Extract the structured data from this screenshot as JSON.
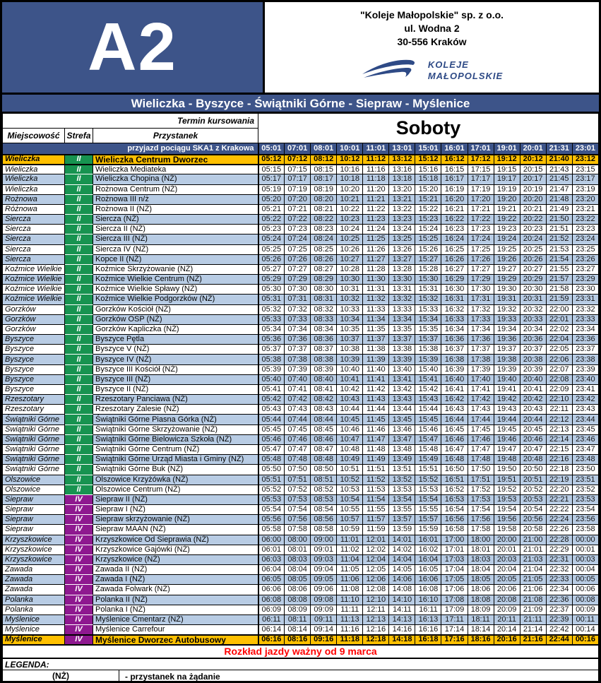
{
  "header": {
    "route_code": "A2",
    "company_lines": [
      "\"Koleje Małopolskie\" sp. z o.o.",
      "ul. Wodna 2",
      "30-556 Kraków"
    ],
    "logo_line1": "KOLEJE",
    "logo_line2": "MAŁOPOLSKIE"
  },
  "title": "Wieliczka - Byszyce - Świątniki Górne - Siepraw - Myślenice",
  "table": {
    "termin_label": "Termin kursowania",
    "day_type": "Soboty",
    "col_headers": {
      "miejscowosc": "Miejscowość",
      "strefa": "Strefa",
      "przystanek": "Przystanek"
    },
    "ska_label": "przyjazd pociągu SKA1 z Krakowa",
    "ska_times": [
      "05:01",
      "07:01",
      "08:01",
      "10:01",
      "11:01",
      "13:01",
      "15:01",
      "16:01",
      "17:01",
      "19:01",
      "20:01",
      "21:31",
      "23:01"
    ],
    "rows": [
      {
        "m": "Wieliczka",
        "z": "II",
        "s": "Wieliczka Centrum Dworzec",
        "terminal": true,
        "t": [
          "05:12",
          "07:12",
          "08:12",
          "10:12",
          "11:12",
          "13:12",
          "15:12",
          "16:12",
          "17:12",
          "19:12",
          "20:12",
          "21:40",
          "23:12"
        ]
      },
      {
        "m": "Wieliczka",
        "z": "II",
        "s": "Wieliczka Mediateka",
        "t": [
          "05:15",
          "07:15",
          "08:15",
          "10:16",
          "11:16",
          "13:16",
          "15:16",
          "16:15",
          "17:15",
          "19:15",
          "20:15",
          "21:43",
          "23:15"
        ]
      },
      {
        "m": "Wieliczka",
        "z": "II",
        "s": "Wieliczka Chopina (NŻ)",
        "t": [
          "05:17",
          "07:17",
          "08:17",
          "10:18",
          "11:18",
          "13:18",
          "15:18",
          "16:17",
          "17:17",
          "19:17",
          "20:17",
          "21:45",
          "23:17"
        ]
      },
      {
        "m": "Wieliczka",
        "z": "II",
        "s": "Rożnowa Centrum (NŻ)",
        "t": [
          "05:19",
          "07:19",
          "08:19",
          "10:20",
          "11:20",
          "13:20",
          "15:20",
          "16:19",
          "17:19",
          "19:19",
          "20:19",
          "21:47",
          "23:19"
        ]
      },
      {
        "m": "Rożnowa",
        "z": "II",
        "s": "Rożnowa III n/ż",
        "t": [
          "05:20",
          "07:20",
          "08:20",
          "10:21",
          "11:21",
          "13:21",
          "15:21",
          "16:20",
          "17:20",
          "19:20",
          "20:20",
          "21:48",
          "23:20"
        ]
      },
      {
        "m": "Różnowa",
        "z": "II",
        "s": "Rożnowa II (NŻ)",
        "t": [
          "05:21",
          "07:21",
          "08:21",
          "10:22",
          "11:22",
          "13:22",
          "15:22",
          "16:21",
          "17:21",
          "19:21",
          "20:21",
          "21:49",
          "23:21"
        ]
      },
      {
        "m": "Siercza",
        "z": "II",
        "s": "Siercza (NŻ)",
        "t": [
          "05:22",
          "07:22",
          "08:22",
          "10:23",
          "11:23",
          "13:23",
          "15:23",
          "16:22",
          "17:22",
          "19:22",
          "20:22",
          "21:50",
          "23:22"
        ]
      },
      {
        "m": "Siercza",
        "z": "II",
        "s": "Siercza II (NŻ)",
        "t": [
          "05:23",
          "07:23",
          "08:23",
          "10:24",
          "11:24",
          "13:24",
          "15:24",
          "16:23",
          "17:23",
          "19:23",
          "20:23",
          "21:51",
          "23:23"
        ]
      },
      {
        "m": "Siercza",
        "z": "II",
        "s": "Siercza III (NŻ)",
        "t": [
          "05:24",
          "07:24",
          "08:24",
          "10:25",
          "11:25",
          "13:25",
          "15:25",
          "16:24",
          "17:24",
          "19:24",
          "20:24",
          "21:52",
          "23:24"
        ]
      },
      {
        "m": "Siercza",
        "z": "II",
        "s": "Siercza IV (NŻ)",
        "t": [
          "05:25",
          "07:25",
          "08:25",
          "10:26",
          "11:26",
          "13:26",
          "15:26",
          "16:25",
          "17:25",
          "19:25",
          "20:25",
          "21:53",
          "23:25"
        ]
      },
      {
        "m": "Siercza",
        "z": "II",
        "s": "Kopce II (NŻ)",
        "t": [
          "05:26",
          "07:26",
          "08:26",
          "10:27",
          "11:27",
          "13:27",
          "15:27",
          "16:26",
          "17:26",
          "19:26",
          "20:26",
          "21:54",
          "23:26"
        ]
      },
      {
        "m": "Koźmice Wielkie",
        "z": "II",
        "s": "Koźmice Skrzyżowanie (NŻ)",
        "t": [
          "05:27",
          "07:27",
          "08:27",
          "10:28",
          "11:28",
          "13:28",
          "15:28",
          "16:27",
          "17:27",
          "19:27",
          "20:27",
          "21:55",
          "23:27"
        ]
      },
      {
        "m": "Koźmice Wielkie",
        "z": "II",
        "s": "Koźmice Wielkie Centrum (NŻ)",
        "t": [
          "05:29",
          "07:29",
          "08:29",
          "10:30",
          "11:30",
          "13:30",
          "15:30",
          "16:29",
          "17:29",
          "19:29",
          "20:29",
          "21:57",
          "23:29"
        ]
      },
      {
        "m": "Koźmice Wielkie",
        "z": "II",
        "s": "Koźmice Wielkie Spławy (NŻ)",
        "t": [
          "05:30",
          "07:30",
          "08:30",
          "10:31",
          "11:31",
          "13:31",
          "15:31",
          "16:30",
          "17:30",
          "19:30",
          "20:30",
          "21:58",
          "23:30"
        ]
      },
      {
        "m": "Koźmice Wielkie",
        "z": "II",
        "s": "Koźmice Wielkie Podgorzków (NŻ)",
        "t": [
          "05:31",
          "07:31",
          "08:31",
          "10:32",
          "11:32",
          "13:32",
          "15:32",
          "16:31",
          "17:31",
          "19:31",
          "20:31",
          "21:59",
          "23:31"
        ]
      },
      {
        "m": "Gorzków",
        "z": "II",
        "s": "Gorzków Kościół (NŻ)",
        "t": [
          "05:32",
          "07:32",
          "08:32",
          "10:33",
          "11:33",
          "13:33",
          "15:33",
          "16:32",
          "17:32",
          "19:32",
          "20:32",
          "22:00",
          "23:32"
        ]
      },
      {
        "m": "Gorzków",
        "z": "II",
        "s": "Gorzków OSP (NŻ)",
        "t": [
          "05:33",
          "07:33",
          "08:33",
          "10:34",
          "11:34",
          "13:34",
          "15:34",
          "16:33",
          "17:33",
          "19:33",
          "20:33",
          "22:01",
          "23:33"
        ]
      },
      {
        "m": "Gorzków",
        "z": "II",
        "s": "Gorzków Kapliczka (NŻ)",
        "t": [
          "05:34",
          "07:34",
          "08:34",
          "10:35",
          "11:35",
          "13:35",
          "15:35",
          "16:34",
          "17:34",
          "19:34",
          "20:34",
          "22:02",
          "23:34"
        ]
      },
      {
        "m": "Byszyce",
        "z": "II",
        "s": "Byszyce Pętla",
        "t": [
          "05:36",
          "07:36",
          "08:36",
          "10:37",
          "11:37",
          "13:37",
          "15:37",
          "16:36",
          "17:36",
          "19:36",
          "20:36",
          "22:04",
          "23:36"
        ]
      },
      {
        "m": "Byszyce",
        "z": "II",
        "s": "Byszyce V (NŻ)",
        "t": [
          "05:37",
          "07:37",
          "08:37",
          "10:38",
          "11:38",
          "13:38",
          "15:38",
          "16:37",
          "17:37",
          "19:37",
          "20:37",
          "22:05",
          "23:37"
        ]
      },
      {
        "m": "Byszyce",
        "z": "II",
        "s": "Byszyce IV (NŻ)",
        "t": [
          "05:38",
          "07:38",
          "08:38",
          "10:39",
          "11:39",
          "13:39",
          "15:39",
          "16:38",
          "17:38",
          "19:38",
          "20:38",
          "22:06",
          "23:38"
        ]
      },
      {
        "m": "Byszyce",
        "z": "II",
        "s": "Byszyce III Kościół (NŻ)",
        "t": [
          "05:39",
          "07:39",
          "08:39",
          "10:40",
          "11:40",
          "13:40",
          "15:40",
          "16:39",
          "17:39",
          "19:39",
          "20:39",
          "22:07",
          "23:39"
        ]
      },
      {
        "m": "Byszyce",
        "z": "II",
        "s": "Byszyce III (NŻ)",
        "t": [
          "05:40",
          "07:40",
          "08:40",
          "10:41",
          "11:41",
          "13:41",
          "15:41",
          "16:40",
          "17:40",
          "19:40",
          "20:40",
          "22:08",
          "23:40"
        ]
      },
      {
        "m": "Byszyce",
        "z": "II",
        "s": "Byszyce II (NŻ)",
        "t": [
          "05:41",
          "07:41",
          "08:41",
          "10:42",
          "11:42",
          "13:42",
          "15:42",
          "16:41",
          "17:41",
          "19:41",
          "20:41",
          "22:09",
          "23:41"
        ]
      },
      {
        "m": "Rzeszotary",
        "z": "II",
        "s": "Rzeszotary Panciawa (NŻ)",
        "t": [
          "05:42",
          "07:42",
          "08:42",
          "10:43",
          "11:43",
          "13:43",
          "15:43",
          "16:42",
          "17:42",
          "19:42",
          "20:42",
          "22:10",
          "23:42"
        ]
      },
      {
        "m": "Rzeszotary",
        "z": "II",
        "s": "Rzeszotary Zalesie (NŻ)",
        "t": [
          "05:43",
          "07:43",
          "08:43",
          "10:44",
          "11:44",
          "13:44",
          "15:44",
          "16:43",
          "17:43",
          "19:43",
          "20:43",
          "22:11",
          "23:43"
        ]
      },
      {
        "m": "Świątniki Górne",
        "z": "II",
        "s": "Świątniki Górne Piasna Górka (NŻ)",
        "t": [
          "05:44",
          "07:44",
          "08:44",
          "10:45",
          "11:45",
          "13:45",
          "15:45",
          "16:44",
          "17:44",
          "19:44",
          "20:44",
          "22:12",
          "23:44"
        ]
      },
      {
        "m": "Świątniki Górne",
        "z": "II",
        "s": "Świątniki Górne Skrzyżowanie (NŻ)",
        "t": [
          "05:45",
          "07:45",
          "08:45",
          "10:46",
          "11:46",
          "13:46",
          "15:46",
          "16:45",
          "17:45",
          "19:45",
          "20:45",
          "22:13",
          "23:45"
        ]
      },
      {
        "m": "Świątniki Górne",
        "z": "II",
        "s": "Świątniki Górne Bielowicza Szkoła (NŻ)",
        "t": [
          "05:46",
          "07:46",
          "08:46",
          "10:47",
          "11:47",
          "13:47",
          "15:47",
          "16:46",
          "17:46",
          "19:46",
          "20:46",
          "22:14",
          "23:46"
        ]
      },
      {
        "m": "Świątniki Górne",
        "z": "II",
        "s": "Świątniki Górne Centrum (NŻ)",
        "t": [
          "05:47",
          "07:47",
          "08:47",
          "10:48",
          "11:48",
          "13:48",
          "15:48",
          "16:47",
          "17:47",
          "19:47",
          "20:47",
          "22:15",
          "23:47"
        ]
      },
      {
        "m": "Świątniki Górne",
        "z": "II",
        "s": "Świątniki Górne Urząd Miasta i Gminy (NŻ)",
        "t": [
          "05:48",
          "07:48",
          "08:48",
          "10:49",
          "11:49",
          "13:49",
          "15:49",
          "16:48",
          "17:48",
          "19:48",
          "20:48",
          "22:16",
          "23:48"
        ]
      },
      {
        "m": "Świątniki Górne",
        "z": "II",
        "s": "Świątniki Górne Buk (NŻ)",
        "t": [
          "05:50",
          "07:50",
          "08:50",
          "10:51",
          "11:51",
          "13:51",
          "15:51",
          "16:50",
          "17:50",
          "19:50",
          "20:50",
          "22:18",
          "23:50"
        ]
      },
      {
        "m": "Olszowice",
        "z": "II",
        "s": "Olszowice Krzyżówka (NŻ)",
        "t": [
          "05:51",
          "07:51",
          "08:51",
          "10:52",
          "11:52",
          "13:52",
          "15:52",
          "16:51",
          "17:51",
          "19:51",
          "20:51",
          "22:19",
          "23:51"
        ]
      },
      {
        "m": "Olszowice",
        "z": "II",
        "s": "Olszowice Centrum (NŻ)",
        "t": [
          "05:52",
          "07:52",
          "08:52",
          "10:53",
          "11:53",
          "13:53",
          "15:53",
          "16:52",
          "17:52",
          "19:52",
          "20:52",
          "22:20",
          "23:52"
        ]
      },
      {
        "m": "Siepraw",
        "z": "IV",
        "s": "Siepraw II (NŻ)",
        "t": [
          "05:53",
          "07:53",
          "08:53",
          "10:54",
          "11:54",
          "13:54",
          "15:54",
          "16:53",
          "17:53",
          "19:53",
          "20:53",
          "22:21",
          "23:53"
        ]
      },
      {
        "m": "Siepraw",
        "z": "IV",
        "s": "Siepraw I (NŻ)",
        "t": [
          "05:54",
          "07:54",
          "08:54",
          "10:55",
          "11:55",
          "13:55",
          "15:55",
          "16:54",
          "17:54",
          "19:54",
          "20:54",
          "22:22",
          "23:54"
        ]
      },
      {
        "m": "Siepraw",
        "z": "IV",
        "s": "Siepraw skrzyżowanie (NŻ)",
        "t": [
          "05:56",
          "07:56",
          "08:56",
          "10:57",
          "11:57",
          "13:57",
          "15:57",
          "16:56",
          "17:56",
          "19:56",
          "20:56",
          "22:24",
          "23:56"
        ]
      },
      {
        "m": "Siepraw",
        "z": "IV",
        "s": "Siepraw MAAN (NŻ)",
        "t": [
          "05:58",
          "07:58",
          "08:58",
          "10:59",
          "11:59",
          "13:59",
          "15:59",
          "16:58",
          "17:58",
          "19:58",
          "20:58",
          "22:26",
          "23:58"
        ]
      },
      {
        "m": "Krzyszkowice",
        "z": "IV",
        "s": "Krzyszkowice Od Sieprawia (NŻ)",
        "t": [
          "06:00",
          "08:00",
          "09:00",
          "11:01",
          "12:01",
          "14:01",
          "16:01",
          "17:00",
          "18:00",
          "20:00",
          "21:00",
          "22:28",
          "00:00"
        ]
      },
      {
        "m": "Krzyszkowice",
        "z": "IV",
        "s": "Krzyszkowice Gajówki (NŻ)",
        "t": [
          "06:01",
          "08:01",
          "09:01",
          "11:02",
          "12:02",
          "14:02",
          "16:02",
          "17:01",
          "18:01",
          "20:01",
          "21:01",
          "22:29",
          "00:01"
        ]
      },
      {
        "m": "Krzyszkowice",
        "z": "IV",
        "s": "Krzyszkowice (NŻ)",
        "t": [
          "06:03",
          "08:03",
          "09:03",
          "11:04",
          "12:04",
          "14:04",
          "16:04",
          "17:03",
          "18:03",
          "20:03",
          "21:03",
          "22:31",
          "00:03"
        ]
      },
      {
        "m": "Zawada",
        "z": "IV",
        "s": "Zawada II (NŻ)",
        "t": [
          "06:04",
          "08:04",
          "09:04",
          "11:05",
          "12:05",
          "14:05",
          "16:05",
          "17:04",
          "18:04",
          "20:04",
          "21:04",
          "22:32",
          "00:04"
        ]
      },
      {
        "m": "Zawada",
        "z": "IV",
        "s": "Zawada I (NŻ)",
        "t": [
          "06:05",
          "08:05",
          "09:05",
          "11:06",
          "12:06",
          "14:06",
          "16:06",
          "17:05",
          "18:05",
          "20:05",
          "21:05",
          "22:33",
          "00:05"
        ]
      },
      {
        "m": "Zawada",
        "z": "IV",
        "s": "Zawada Folwark (NŻ)",
        "t": [
          "06:06",
          "08:06",
          "09:06",
          "11:08",
          "12:08",
          "14:08",
          "16:08",
          "17:06",
          "18:06",
          "20:06",
          "21:06",
          "22:34",
          "00:06"
        ]
      },
      {
        "m": "Polanka",
        "z": "IV",
        "s": "Polanka II (NŻ)",
        "t": [
          "06:08",
          "08:08",
          "09:08",
          "11:10",
          "12:10",
          "14:10",
          "16:10",
          "17:08",
          "18:08",
          "20:08",
          "21:08",
          "22:36",
          "00:08"
        ]
      },
      {
        "m": "Polanka",
        "z": "IV",
        "s": "Polanka I (NŻ)",
        "t": [
          "06:09",
          "08:09",
          "09:09",
          "11:11",
          "12:11",
          "14:11",
          "16:11",
          "17:09",
          "18:09",
          "20:09",
          "21:09",
          "22:37",
          "00:09"
        ]
      },
      {
        "m": "Myślenice",
        "z": "IV",
        "s": "Myślenice Cmentarz (NŻ)",
        "t": [
          "06:11",
          "08:11",
          "09:11",
          "11:13",
          "12:13",
          "14:13",
          "16:13",
          "17:11",
          "18:11",
          "20:11",
          "21:11",
          "22:39",
          "00:11"
        ]
      },
      {
        "m": "Myślenice",
        "z": "IV",
        "s": "Myślenice Carrefour",
        "t": [
          "06:14",
          "08:14",
          "09:14",
          "11:16",
          "12:16",
          "14:16",
          "16:16",
          "17:14",
          "18:14",
          "20:14",
          "21:14",
          "22:42",
          "00:14"
        ]
      },
      {
        "m": "Myślenice",
        "z": "IV",
        "s": "Myślenice Dworzec Autobusowy",
        "terminal": true,
        "t": [
          "06:16",
          "08:16",
          "09:16",
          "11:18",
          "12:18",
          "14:18",
          "16:18",
          "17:16",
          "18:16",
          "20:16",
          "21:16",
          "22:44",
          "00:16"
        ]
      }
    ]
  },
  "footer": {
    "validity": "Rozkład jazdy ważny od 9 marca",
    "legend_title": "LEGENDA:",
    "legend_key": "(NŻ)",
    "legend_value": "- przystanek na żądanie"
  },
  "colors": {
    "navy": "#3D5489",
    "terminal_orange": "#FFC000",
    "zone_II_green": "#179350",
    "zone_IV_purple": "#8E188F",
    "alt_row_blue": "#B8CCE4",
    "notice_red": "#FF0000"
  }
}
